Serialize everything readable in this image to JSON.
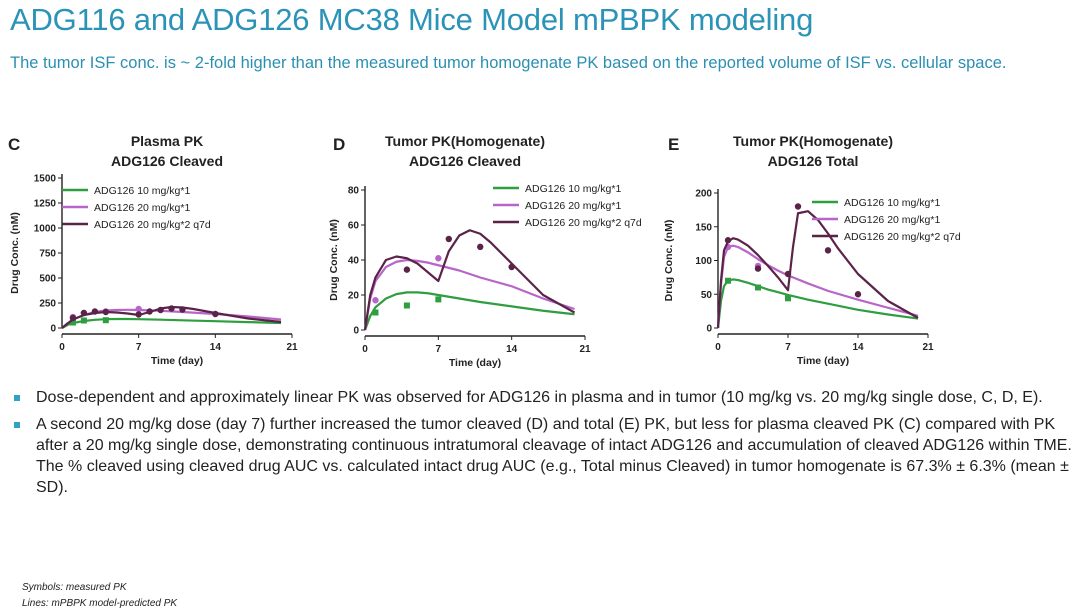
{
  "slide": {
    "title": "ADG116 and ADG126 MC38 Mice Model mPBPK modeling",
    "subtitle": "The tumor ISF conc. is ~ 2-fold higher than the measured tumor homogenate PK based on the reported volume of ISF vs. cellular space."
  },
  "colors": {
    "dose10": "#2e9e40",
    "dose20": "#b765c9",
    "dose20x2": "#5b2348",
    "title": "#2b93b8",
    "bullet": "#2fa3c6"
  },
  "chart_data": [
    {
      "type": "line",
      "panel_label": "C",
      "title_lines": [
        "Plasma PK",
        "ADG126 Cleaved"
      ],
      "xlabel": "Time (day)",
      "ylabel": "Drug Conc. (nM)",
      "xlim": [
        0,
        21
      ],
      "ylim": [
        0,
        1500
      ],
      "xticks": [
        0,
        7,
        14,
        21
      ],
      "yticks": [
        0,
        250,
        500,
        750,
        1000,
        1250,
        1500
      ],
      "legend": [
        "ADG126 10 mg/kg*1",
        "ADG126 20 mg/kg*1",
        "ADG126 20 mg/kg*2 q7d"
      ],
      "series": [
        {
          "name": "ADG126 10 mg/kg*1",
          "color_key": "dose10",
          "line_x": [
            0,
            0.5,
            1,
            2,
            3,
            4,
            5,
            6,
            7,
            9,
            11,
            14,
            17,
            20
          ],
          "line_y": [
            0,
            30,
            50,
            70,
            82,
            88,
            90,
            90,
            88,
            83,
            77,
            68,
            59,
            50
          ],
          "points_x": [
            1,
            2,
            4
          ],
          "points_y": [
            55,
            75,
            78
          ]
        },
        {
          "name": "ADG126 20 mg/kg*1",
          "color_key": "dose20",
          "line_x": [
            0,
            0.5,
            1,
            2,
            3,
            4,
            5,
            6,
            7,
            9,
            11,
            14,
            17,
            20
          ],
          "line_y": [
            0,
            45,
            85,
            130,
            160,
            175,
            180,
            182,
            180,
            172,
            160,
            140,
            115,
            85
          ],
          "points_x": [
            1,
            2,
            4,
            7
          ],
          "points_y": [
            110,
            150,
            165,
            190
          ]
        },
        {
          "name": "ADG126 20 mg/kg*2 q7d",
          "color_key": "dose20x2",
          "line_x": [
            0,
            0.5,
            1,
            2,
            3,
            4,
            5,
            6,
            7,
            8,
            9,
            10,
            11,
            12,
            14,
            17,
            20
          ],
          "line_y": [
            0,
            45,
            85,
            130,
            150,
            160,
            155,
            145,
            130,
            160,
            195,
            210,
            205,
            190,
            150,
            95,
            60
          ],
          "points_x": [
            1,
            2,
            3,
            4,
            7,
            8,
            9,
            10,
            11,
            14
          ],
          "points_y": [
            100,
            150,
            165,
            160,
            135,
            165,
            180,
            195,
            185,
            140
          ]
        }
      ]
    },
    {
      "type": "line",
      "panel_label": "D",
      "title_lines": [
        "Tumor PK(Homogenate)",
        "ADG126 Cleaved"
      ],
      "xlabel": "Time (day)",
      "ylabel": "Drug Conc. (nM)",
      "xlim": [
        0,
        21
      ],
      "ylim": [
        0,
        80
      ],
      "xticks": [
        0,
        7,
        14,
        21
      ],
      "yticks": [
        0,
        20,
        40,
        60,
        80
      ],
      "legend": [
        "ADG126 10 mg/kg*1",
        "ADG126 20 mg/kg*1",
        "ADG126 20 mg/kg*2 q7d"
      ],
      "series": [
        {
          "name": "ADG126 10 mg/kg*1",
          "color_key": "dose10",
          "line_x": [
            0,
            0.5,
            1,
            2,
            3,
            4,
            5,
            6,
            7,
            9,
            11,
            14,
            17,
            20
          ],
          "line_y": [
            0,
            8,
            13,
            18,
            20.5,
            21.5,
            21.5,
            21,
            20,
            18,
            16,
            13.5,
            11,
            9
          ],
          "points_x": [
            1,
            4,
            7
          ],
          "points_y": [
            10,
            14,
            17.5
          ]
        },
        {
          "name": "ADG126 20 mg/kg*1",
          "color_key": "dose20",
          "line_x": [
            0,
            0.5,
            1,
            2,
            3,
            4,
            5,
            6,
            7,
            9,
            11,
            14,
            17,
            20
          ],
          "line_y": [
            0,
            18,
            28,
            36,
            39,
            40,
            39.5,
            38.5,
            37,
            34,
            30,
            25,
            18,
            12
          ],
          "points_x": [
            1,
            7
          ],
          "points_y": [
            17,
            41
          ]
        },
        {
          "name": "ADG126 20 mg/kg*2 q7d",
          "color_key": "dose20x2",
          "line_x": [
            0,
            0.5,
            1,
            2,
            3,
            4,
            5,
            6,
            7,
            8,
            9,
            10,
            11,
            12,
            14,
            17,
            20
          ],
          "line_y": [
            0,
            20,
            30,
            40,
            42,
            41,
            38,
            33,
            28,
            45,
            54,
            57,
            55,
            50,
            38,
            20,
            10
          ],
          "points_x": [
            4,
            8,
            11,
            14
          ],
          "points_y": [
            34.5,
            52,
            47.5,
            36
          ]
        }
      ]
    },
    {
      "type": "line",
      "panel_label": "E",
      "title_lines": [
        "Tumor PK(Homogenate)",
        "ADG126 Total"
      ],
      "xlabel": "Time (day)",
      "ylabel": "Drug Conc. (nM)",
      "xlim": [
        0,
        21
      ],
      "ylim": [
        0,
        200
      ],
      "xticks": [
        0,
        7,
        14,
        21
      ],
      "yticks": [
        0,
        50,
        100,
        150,
        200
      ],
      "legend": [
        "ADG126 10 mg/kg*1",
        "ADG126 20 mg/kg*1",
        "ADG126 20 mg/kg*2 q7d"
      ],
      "series": [
        {
          "name": "ADG126 10 mg/kg*1",
          "color_key": "dose10",
          "line_x": [
            0,
            0.3,
            0.6,
            1,
            1.5,
            2,
            3,
            4,
            5,
            6,
            7,
            9,
            11,
            14,
            17,
            20
          ],
          "line_y": [
            0,
            40,
            62,
            70,
            72,
            71,
            67,
            62,
            57,
            53,
            49,
            42,
            36,
            27,
            20,
            14
          ],
          "points_x": [
            1,
            4,
            7
          ],
          "points_y": [
            70,
            60,
            44
          ]
        },
        {
          "name": "ADG126 20 mg/kg*1",
          "color_key": "dose20",
          "line_x": [
            0,
            0.3,
            0.6,
            1,
            1.5,
            2,
            3,
            4,
            5,
            6,
            7,
            9,
            11,
            14,
            17,
            20
          ],
          "line_y": [
            0,
            65,
            105,
            120,
            122,
            120,
            112,
            102,
            93,
            85,
            78,
            66,
            55,
            42,
            30,
            18
          ],
          "points_x": [
            1,
            4
          ],
          "points_y": [
            120,
            92
          ]
        },
        {
          "name": "ADG126 20 mg/kg*2 q7d",
          "color_key": "dose20x2",
          "line_x": [
            0,
            0.3,
            0.6,
            1,
            1.5,
            2,
            3,
            4,
            5,
            6,
            7,
            7.5,
            8,
            9,
            10,
            11,
            12,
            14,
            17,
            20
          ],
          "line_y": [
            0,
            70,
            115,
            128,
            133,
            131,
            122,
            108,
            92,
            75,
            56,
            120,
            170,
            173,
            160,
            140,
            118,
            80,
            40,
            15
          ],
          "points_x": [
            1,
            4,
            7,
            8,
            11,
            14
          ],
          "points_y": [
            130,
            88,
            80,
            180,
            115,
            50
          ]
        }
      ]
    }
  ],
  "bullets": [
    "Dose-dependent and approximately linear PK was observed for ADG126 in plasma and in tumor (10 mg/kg vs. 20 mg/kg single dose, C, D, E).",
    "A second 20 mg/kg dose (day 7) further increased the tumor cleaved (D) and total (E) PK, but less for plasma cleaved PK (C) compared with PK after a 20 mg/kg single dose, demonstrating continuous intratumoral cleavage of intact ADG126 and accumulation of cleaved ADG126 within TME. The % cleaved using cleaved drug AUC vs. calculated intact drug AUC (e.g., Total minus Cleaved) in tumor homogenate is 67.3% ± 6.3% (mean ± SD)."
  ],
  "footnotes": {
    "symbols": "Symbols: measured PK",
    "lines": "Lines: mPBPK model-predicted PK"
  }
}
